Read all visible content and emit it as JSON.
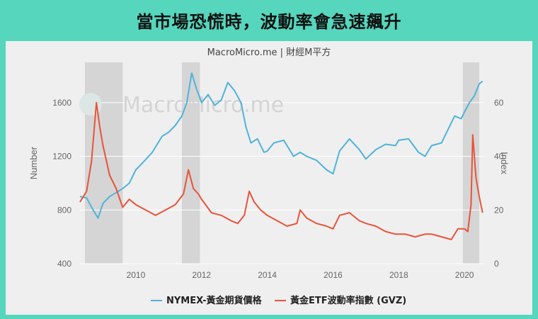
{
  "headline": "當市場恐慌時，波動率會急速飆升",
  "chart_data": {
    "type": "line",
    "source": "MacroMicro.me | 財經M平方",
    "watermark": "MacroMicro.me",
    "xlim": [
      2008.3,
      2020.6
    ],
    "x_ticks": [
      "2010",
      "2012",
      "2014",
      "2016",
      "2018",
      "2020"
    ],
    "y_left": {
      "label": "Number",
      "lim": [
        400,
        1900
      ],
      "ticks": [
        "400",
        "800",
        "1200",
        "1600"
      ]
    },
    "y_right": {
      "label": "Index",
      "lim": [
        0,
        75
      ],
      "ticks": [
        "0",
        "20",
        "40",
        "60"
      ]
    },
    "shaded_periods": [
      [
        2008.45,
        2009.6
      ],
      [
        2011.4,
        2011.95
      ],
      [
        2019.95,
        2020.45
      ]
    ],
    "colors": {
      "gold": "#4fb3d9",
      "gvz": "#e8533a",
      "shade": "#d5d5d5",
      "background": "#efefef",
      "page": "#55d6bd"
    },
    "series": [
      {
        "name": "NYMEX-黃金期貨價格",
        "axis": "left",
        "color": "#4fb3d9",
        "x": [
          2008.3,
          2008.5,
          2008.7,
          2008.85,
          2009.0,
          2009.2,
          2009.4,
          2009.6,
          2009.8,
          2010.0,
          2010.2,
          2010.5,
          2010.8,
          2011.0,
          2011.2,
          2011.4,
          2011.55,
          2011.7,
          2011.85,
          2012.0,
          2012.2,
          2012.4,
          2012.6,
          2012.8,
          2013.0,
          2013.2,
          2013.35,
          2013.5,
          2013.7,
          2013.9,
          2014.0,
          2014.2,
          2014.5,
          2014.8,
          2015.0,
          2015.2,
          2015.5,
          2015.8,
          2016.0,
          2016.2,
          2016.5,
          2016.8,
          2017.0,
          2017.3,
          2017.6,
          2017.9,
          2018.0,
          2018.3,
          2018.6,
          2018.8,
          2019.0,
          2019.3,
          2019.5,
          2019.7,
          2019.9,
          2020.0,
          2020.15,
          2020.3,
          2020.45,
          2020.55
        ],
        "y": [
          900,
          890,
          800,
          740,
          850,
          900,
          930,
          960,
          1000,
          1100,
          1150,
          1230,
          1350,
          1380,
          1430,
          1500,
          1600,
          1820,
          1700,
          1600,
          1660,
          1580,
          1620,
          1750,
          1690,
          1600,
          1420,
          1300,
          1330,
          1230,
          1240,
          1300,
          1320,
          1200,
          1230,
          1200,
          1170,
          1100,
          1070,
          1240,
          1330,
          1250,
          1180,
          1250,
          1290,
          1280,
          1320,
          1330,
          1230,
          1200,
          1280,
          1300,
          1400,
          1500,
          1480,
          1530,
          1600,
          1650,
          1740,
          1760
        ]
      },
      {
        "name": "黃金ETF波動率指數 (GVZ)",
        "axis": "right",
        "color": "#e8533a",
        "x": [
          2008.3,
          2008.5,
          2008.65,
          2008.8,
          2008.9,
          2009.0,
          2009.2,
          2009.4,
          2009.6,
          2009.8,
          2010.0,
          2010.3,
          2010.6,
          2010.9,
          2011.2,
          2011.45,
          2011.6,
          2011.75,
          2011.9,
          2012.0,
          2012.3,
          2012.6,
          2012.9,
          2013.1,
          2013.3,
          2013.45,
          2013.6,
          2013.8,
          2014.0,
          2014.3,
          2014.6,
          2014.9,
          2015.0,
          2015.2,
          2015.5,
          2015.8,
          2016.0,
          2016.2,
          2016.5,
          2016.8,
          2017.0,
          2017.3,
          2017.6,
          2017.9,
          2018.2,
          2018.5,
          2018.8,
          2019.0,
          2019.3,
          2019.6,
          2019.8,
          2020.0,
          2020.1,
          2020.2,
          2020.25,
          2020.35,
          2020.45,
          2020.55
        ],
        "y": [
          23,
          27,
          38,
          60,
          51,
          44,
          33,
          28,
          21,
          24,
          22,
          20,
          18,
          20,
          22,
          26,
          35,
          28,
          26,
          24,
          19,
          18,
          16,
          15,
          18,
          27,
          23,
          20,
          18,
          16,
          14,
          15,
          20,
          17,
          15,
          14,
          13,
          18,
          19,
          16,
          15,
          14,
          12,
          11,
          11,
          10,
          11,
          11,
          10,
          9,
          13,
          13,
          12,
          22,
          48,
          32,
          25,
          19
        ]
      }
    ],
    "legend": [
      "NYMEX-黃金期貨價格",
      "黃金ETF波動率指數 (GVZ)"
    ],
    "legend_position": "bottom"
  }
}
